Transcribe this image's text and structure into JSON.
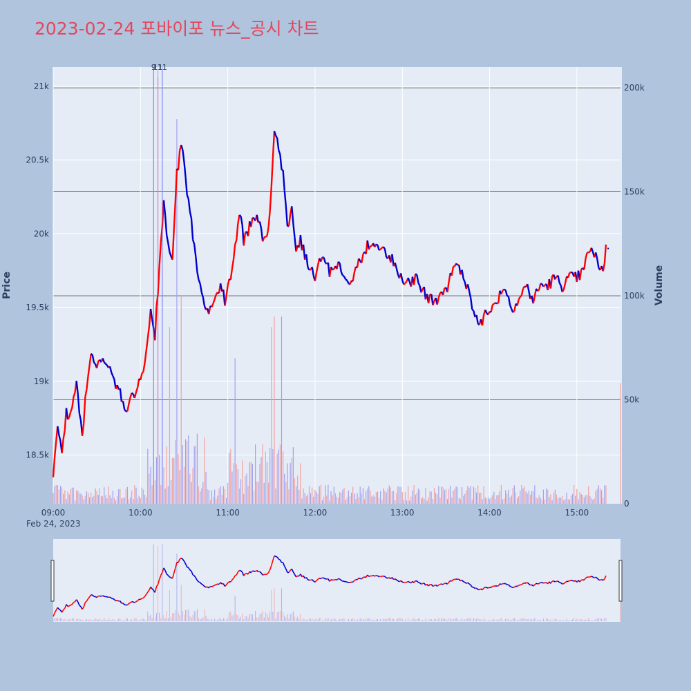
{
  "title": "2023-02-24 포바이포 뉴스_공시 차트",
  "colors": {
    "up": "#ff0000",
    "down": "#0000cc",
    "volume_up": "#f4a0a0",
    "volume_down": "#a0a0f0",
    "plot_bg": "#e5ecf6",
    "page_bg": "#b0c4de",
    "title": "#e4475c"
  },
  "chart_data": {
    "type": "line",
    "date_label": "Feb 24, 2023",
    "x_ticks": [
      "09:00",
      "10:00",
      "11:00",
      "12:00",
      "13:00",
      "14:00",
      "15:00"
    ],
    "xlim": [
      "09:00",
      "15:30"
    ],
    "y_price": {
      "label": "Price",
      "ticks": [
        "18.5k",
        "19k",
        "19.5k",
        "20k",
        "20.5k",
        "21k"
      ],
      "tick_values": [
        18500,
        19000,
        19500,
        20000,
        20500,
        21000
      ],
      "range": [
        18170,
        21130
      ]
    },
    "y_volume": {
      "label": "Volume",
      "ticks": [
        "0",
        "50k",
        "100k",
        "150k",
        "200k"
      ],
      "tick_values": [
        0,
        50000,
        100000,
        150000,
        200000
      ],
      "range": [
        0,
        210000
      ]
    },
    "annotations": [
      {
        "time": "10:09",
        "text": "9"
      },
      {
        "time": "10:12",
        "text": "11"
      },
      {
        "time": "10:15",
        "text": "11"
      }
    ],
    "price_anchors": [
      [
        "09:00",
        18350
      ],
      [
        "09:03",
        18700
      ],
      [
        "09:06",
        18500
      ],
      [
        "09:09",
        18800
      ],
      [
        "09:12",
        18750
      ],
      [
        "09:16",
        19000
      ],
      [
        "09:20",
        18650
      ],
      [
        "09:23",
        18950
      ],
      [
        "09:26",
        19200
      ],
      [
        "09:30",
        19100
      ],
      [
        "09:35",
        19150
      ],
      [
        "09:40",
        19050
      ],
      [
        "09:45",
        18950
      ],
      [
        "09:50",
        18800
      ],
      [
        "09:55",
        18900
      ],
      [
        "10:00",
        19000
      ],
      [
        "10:04",
        19200
      ],
      [
        "10:07",
        19450
      ],
      [
        "10:10",
        19300
      ],
      [
        "10:13",
        19800
      ],
      [
        "10:16",
        20200
      ],
      [
        "10:19",
        19950
      ],
      [
        "10:22",
        19800
      ],
      [
        "10:25",
        20400
      ],
      [
        "10:28",
        20600
      ],
      [
        "10:30",
        20450
      ],
      [
        "10:33",
        20200
      ],
      [
        "10:36",
        20000
      ],
      [
        "10:40",
        19700
      ],
      [
        "10:43",
        19550
      ],
      [
        "10:46",
        19450
      ],
      [
        "10:50",
        19550
      ],
      [
        "10:55",
        19650
      ],
      [
        "10:58",
        19550
      ],
      [
        "11:02",
        19700
      ],
      [
        "11:05",
        19900
      ],
      [
        "11:08",
        20150
      ],
      [
        "11:11",
        19950
      ],
      [
        "11:15",
        20050
      ],
      [
        "11:20",
        20100
      ],
      [
        "11:25",
        19950
      ],
      [
        "11:28",
        20000
      ],
      [
        "11:30",
        20300
      ],
      [
        "11:32",
        20700
      ],
      [
        "11:35",
        20600
      ],
      [
        "11:38",
        20400
      ],
      [
        "11:41",
        20050
      ],
      [
        "11:44",
        20150
      ],
      [
        "11:47",
        19900
      ],
      [
        "11:50",
        19950
      ],
      [
        "11:55",
        19800
      ],
      [
        "12:00",
        19700
      ],
      [
        "12:05",
        19850
      ],
      [
        "12:10",
        19750
      ],
      [
        "12:15",
        19800
      ],
      [
        "12:20",
        19700
      ],
      [
        "12:25",
        19650
      ],
      [
        "12:30",
        19800
      ],
      [
        "12:35",
        19900
      ],
      [
        "12:40",
        19950
      ],
      [
        "12:45",
        19900
      ],
      [
        "12:50",
        19850
      ],
      [
        "12:55",
        19800
      ],
      [
        "13:00",
        19700
      ],
      [
        "13:05",
        19650
      ],
      [
        "13:10",
        19700
      ],
      [
        "13:15",
        19600
      ],
      [
        "13:20",
        19550
      ],
      [
        "13:25",
        19550
      ],
      [
        "13:30",
        19600
      ],
      [
        "13:35",
        19800
      ],
      [
        "13:40",
        19750
      ],
      [
        "13:45",
        19650
      ],
      [
        "13:50",
        19450
      ],
      [
        "13:53",
        19350
      ],
      [
        "13:56",
        19450
      ],
      [
        "14:00",
        19450
      ],
      [
        "14:05",
        19550
      ],
      [
        "14:10",
        19650
      ],
      [
        "14:15",
        19500
      ],
      [
        "14:20",
        19550
      ],
      [
        "14:25",
        19650
      ],
      [
        "14:30",
        19550
      ],
      [
        "14:35",
        19650
      ],
      [
        "14:40",
        19650
      ],
      [
        "14:45",
        19700
      ],
      [
        "14:50",
        19650
      ],
      [
        "14:55",
        19700
      ],
      [
        "15:00",
        19700
      ],
      [
        "15:05",
        19750
      ],
      [
        "15:08",
        19900
      ],
      [
        "15:12",
        19850
      ],
      [
        "15:15",
        19800
      ],
      [
        "15:18",
        19750
      ],
      [
        "15:20",
        19900
      ]
    ],
    "volume_spikes": [
      [
        "10:09",
        210000
      ],
      [
        "10:12",
        205000
      ],
      [
        "10:15",
        210000
      ],
      [
        "10:20",
        85000
      ],
      [
        "10:25",
        185000
      ],
      [
        "10:28",
        100000
      ],
      [
        "11:05",
        70000
      ],
      [
        "11:30",
        85000
      ],
      [
        "11:32",
        90000
      ],
      [
        "11:37",
        90000
      ],
      [
        "15:30",
        58000
      ]
    ]
  }
}
